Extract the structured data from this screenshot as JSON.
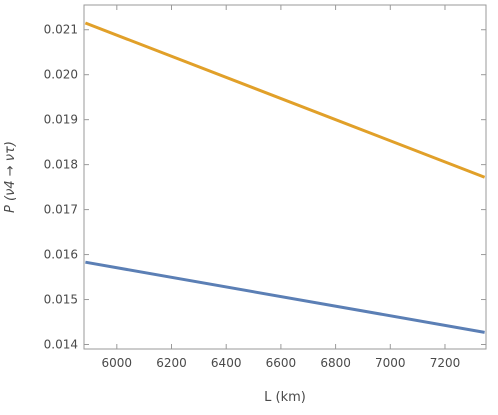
{
  "chart_data": {
    "type": "line",
    "xlabel": "L (km)",
    "ylabel": "P (ν4 → ντ)",
    "xlim": [
      5880,
      7350
    ],
    "ylim": [
      0.0139,
      0.02155
    ],
    "x_ticks": [
      6000,
      6200,
      6400,
      6600,
      6800,
      7000,
      7200
    ],
    "x_tick_labels": [
      "6000",
      "6200",
      "6400",
      "6600",
      "6800",
      "7000",
      "7200"
    ],
    "y_ticks": [
      0.014,
      0.015,
      0.016,
      0.017,
      0.018,
      0.019,
      0.02,
      0.021
    ],
    "y_tick_labels": [
      "0.014",
      "0.015",
      "0.016",
      "0.017",
      "0.018",
      "0.019",
      "0.020",
      "0.021"
    ],
    "grid": false,
    "legend": "none",
    "series": [
      {
        "color": "#e1a029",
        "x": [
          5885,
          7345
        ],
        "y": [
          0.02115,
          0.01772
        ]
      },
      {
        "color": "#5b7fb5",
        "x": [
          5885,
          7345
        ],
        "y": [
          0.01583,
          0.01427
        ]
      }
    ]
  }
}
